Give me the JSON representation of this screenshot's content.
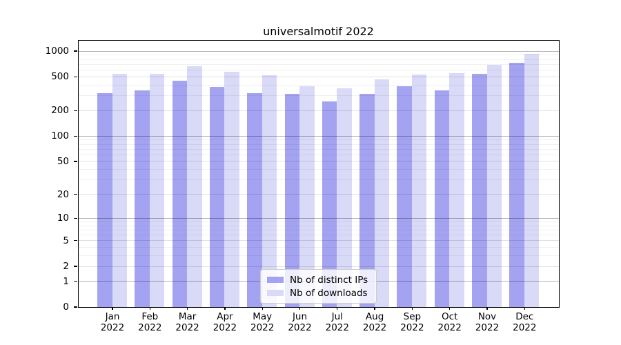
{
  "chart_data": {
    "type": "bar",
    "title": "universalmotif 2022",
    "categories": [
      "Jan 2022",
      "Feb 2022",
      "Mar 2022",
      "Apr 2022",
      "May 2022",
      "Jun 2022",
      "Jul 2022",
      "Aug 2022",
      "Sep 2022",
      "Oct 2022",
      "Nov 2022",
      "Dec 2022"
    ],
    "series": [
      {
        "name": "Nb of distinct IPs",
        "color": "#a3a3f1",
        "values": [
          320,
          345,
          445,
          375,
          320,
          315,
          255,
          315,
          380,
          345,
          535,
          720
        ]
      },
      {
        "name": "Nb of downloads",
        "color": "#d9d9f8",
        "values": [
          535,
          540,
          655,
          570,
          520,
          385,
          365,
          465,
          530,
          545,
          690,
          920
        ]
      }
    ],
    "yticks": [
      0,
      1,
      2,
      5,
      10,
      20,
      50,
      100,
      200,
      500,
      1000
    ],
    "yscale": "log10(value+1)",
    "ylim": [
      0,
      1315
    ],
    "xlabel": "",
    "ylabel": "",
    "grid": true,
    "grid_over_bars": true,
    "legend_position": "lower center inside plot",
    "axis_color": "#000000",
    "background_color": "#ffffff"
  }
}
